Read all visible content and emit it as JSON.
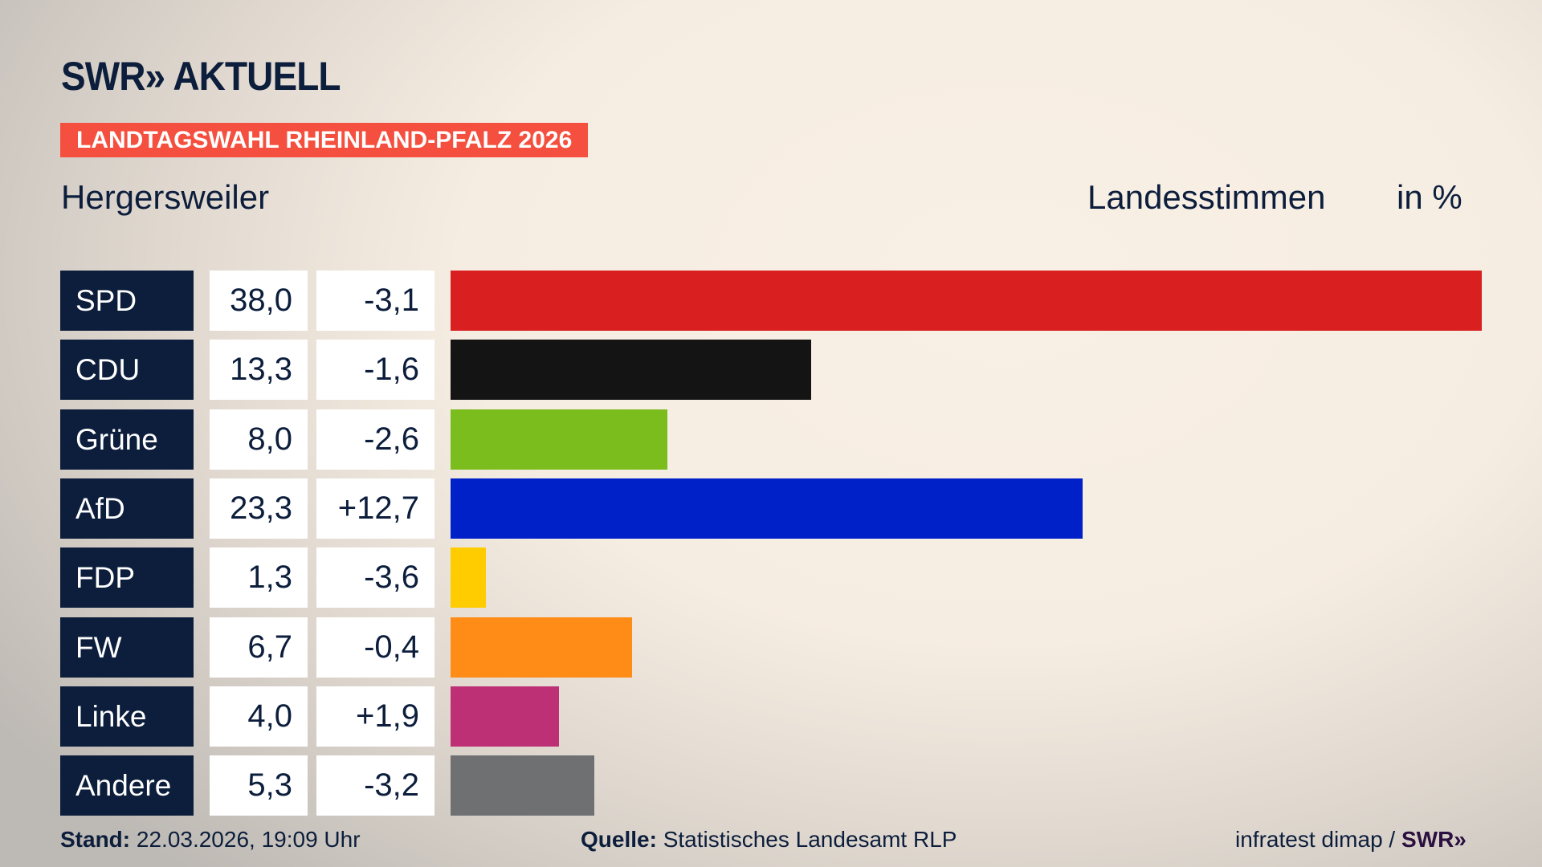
{
  "logo": "SWR» AKTUELL",
  "banner": "LANDTAGSWAHL RHEINLAND-PFALZ 2026",
  "region": "Hergersweiler",
  "header": {
    "vote_type": "Landesstimmen",
    "unit": "in %"
  },
  "chart_data": {
    "type": "bar",
    "orientation": "horizontal",
    "categories": [
      "SPD",
      "CDU",
      "Grüne",
      "AfD",
      "FDP",
      "FW",
      "Linke",
      "Andere"
    ],
    "values": [
      38.0,
      13.3,
      8.0,
      23.3,
      1.3,
      6.7,
      4.0,
      5.3
    ],
    "value_labels": [
      "38,0",
      "13,3",
      "8,0",
      "23,3",
      "1,3",
      "6,7",
      "4,0",
      "5,3"
    ],
    "diff_labels": [
      "-3,1",
      "-1,6",
      "-2,6",
      "+12,7",
      "-3,6",
      "-0,4",
      "+1,9",
      "-3,2"
    ],
    "colors": [
      "#d91f20",
      "#141414",
      "#7abd1d",
      "#0021c8",
      "#ffcc00",
      "#ff8c17",
      "#be3075",
      "#6f7072"
    ],
    "xlim": [
      0,
      38.0
    ]
  },
  "footer": {
    "stand_label": "Stand:",
    "stand_value": "22.03.2026, 19:09 Uhr",
    "source_label": "Quelle:",
    "source_value": "Statistisches Landesamt RLP",
    "credit": "infratest dimap /",
    "credit_logo": "SWR»"
  }
}
